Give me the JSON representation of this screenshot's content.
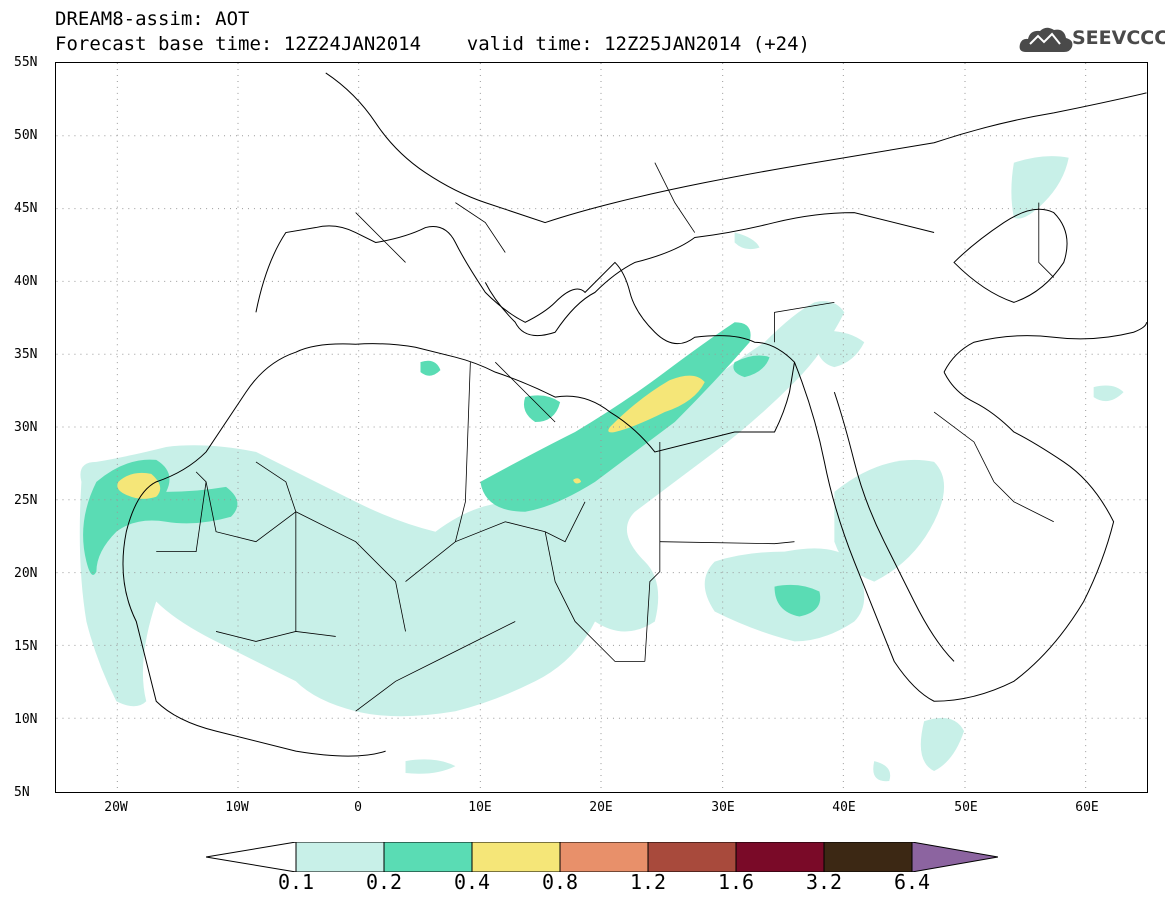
{
  "title": {
    "line1": "DREAM8-assim: AOT",
    "line2": "Forecast base time: 12Z24JAN2014    valid time: 12Z25JAN2014 (+24)"
  },
  "logo": {
    "text": "SEEVCCC",
    "color": "#4a4a4a"
  },
  "map": {
    "lon_range": [
      -25,
      65
    ],
    "lat_range": [
      5,
      55
    ],
    "lat_ticks": [
      "55N",
      "50N",
      "45N",
      "40N",
      "35N",
      "30N",
      "25N",
      "20N",
      "15N",
      "10N",
      "5N"
    ],
    "lon_ticks": [
      "20W",
      "10W",
      "0",
      "10E",
      "20E",
      "30E",
      "40E",
      "50E",
      "60E"
    ],
    "gridlines": "dotted"
  },
  "colorbar": {
    "labels": [
      "0.1",
      "0.2",
      "0.4",
      "0.8",
      "1.2",
      "1.6",
      "3.2",
      "6.4"
    ],
    "colors": [
      "#ffffff",
      "#c8f0e8",
      "#5adcb4",
      "#f5e678",
      "#e8906a",
      "#a84a3c",
      "#7a0a28",
      "#3c2814",
      "#8c64a0"
    ]
  }
}
